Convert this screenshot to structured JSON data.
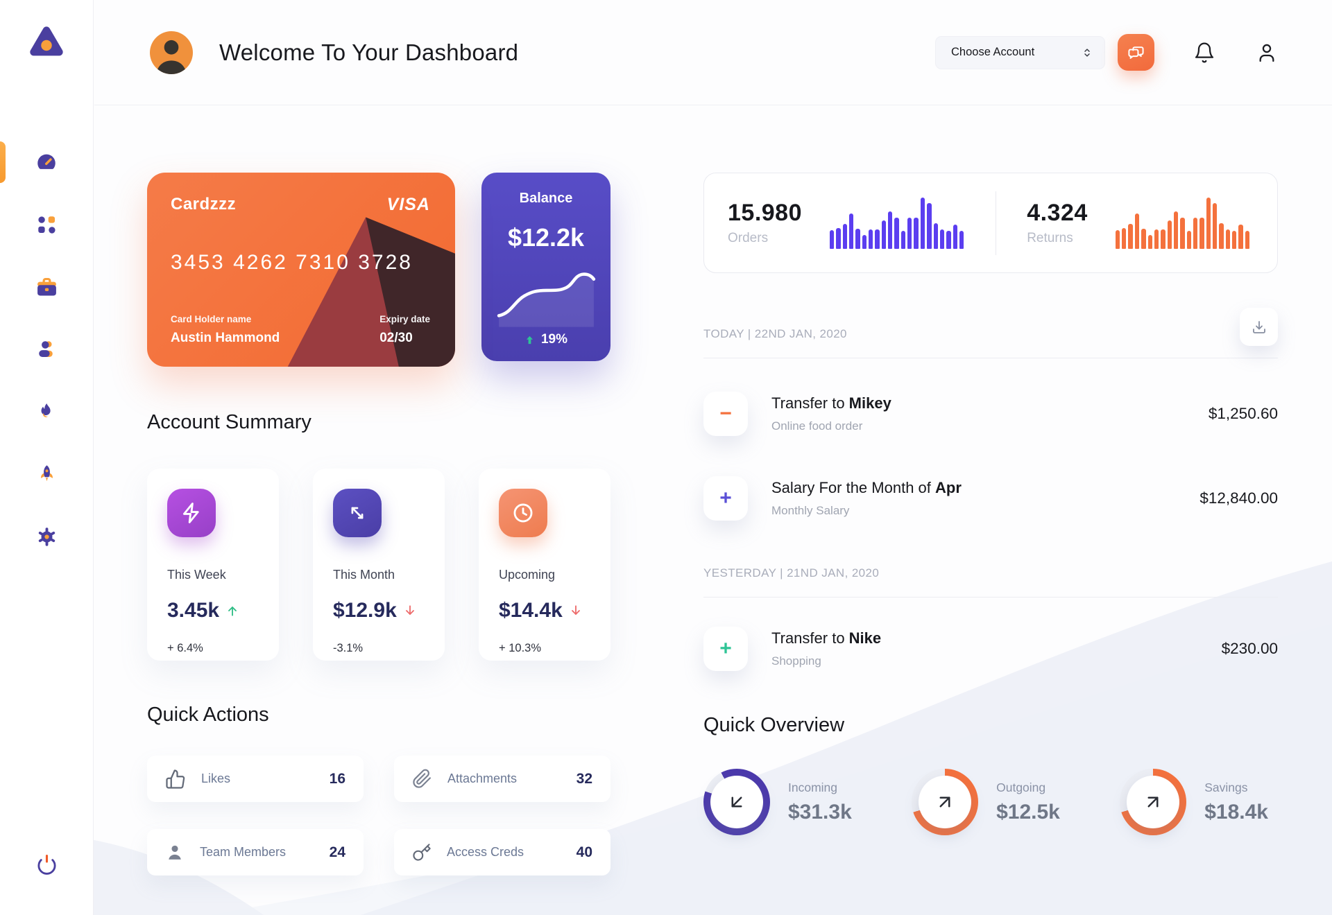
{
  "header": {
    "title": "Welcome To Your Dashboard",
    "account_select": "Choose Account",
    "icons": [
      "chat-bubbles-icon",
      "bell-icon",
      "user-icon"
    ]
  },
  "sidebar": {
    "logo": "triangle-logo",
    "items": [
      {
        "name": "dashboard",
        "icon": "speedometer-icon",
        "active": true
      },
      {
        "name": "apps",
        "icon": "grid-dots-icon",
        "active": false
      },
      {
        "name": "work",
        "icon": "briefcase-icon",
        "active": false
      },
      {
        "name": "team",
        "icon": "user-icon",
        "active": false
      },
      {
        "name": "trending",
        "icon": "flame-icon",
        "active": false
      },
      {
        "name": "launch",
        "icon": "rocket-icon",
        "active": false
      },
      {
        "name": "settings",
        "icon": "gear-icon",
        "active": false
      }
    ],
    "logout_icon": "power-icon"
  },
  "card": {
    "name": "Cardzzz",
    "brand": "VISA",
    "number": "3453 4262 7310 3728",
    "holder_label": "Card Holder name",
    "holder": "Austin Hammond",
    "expiry_label": "Expiry date",
    "expiry": "02/30"
  },
  "balance": {
    "label": "Balance",
    "value": "$12.2k",
    "change": "19%",
    "trend": "up"
  },
  "account_summary": {
    "title": "Account Summary",
    "cards": [
      {
        "label": "This Week",
        "value": "3.45k",
        "trend": "up",
        "change": "+ 6.4%",
        "icon": "lightning-icon"
      },
      {
        "label": "This Month",
        "value": "$12.9k",
        "trend": "down",
        "change": "-3.1%",
        "icon": "transfer-arrows-icon"
      },
      {
        "label": "Upcoming",
        "value": "$14.4k",
        "trend": "down",
        "change": "+ 10.3%",
        "icon": "clock-icon"
      }
    ]
  },
  "quick_actions": {
    "title": "Quick Actions",
    "items": [
      {
        "label": "Likes",
        "count": "16",
        "icon": "clap-hands-icon"
      },
      {
        "label": "Attachments",
        "count": "32",
        "icon": "paperclip-icon"
      },
      {
        "label": "Team Members",
        "count": "24",
        "icon": "member-icon"
      },
      {
        "label": "Access Creds",
        "count": "40",
        "icon": "key-icon"
      }
    ]
  },
  "stats": {
    "orders": {
      "value": "15.980",
      "label": "Orders"
    },
    "returns": {
      "value": "4.324",
      "label": "Returns"
    }
  },
  "chart_data": [
    {
      "type": "bar",
      "title": "Orders activity",
      "values": [
        36,
        40,
        48,
        68,
        38,
        26,
        37,
        37,
        55,
        72,
        60,
        35,
        60,
        60,
        100,
        88,
        50,
        37,
        35,
        47,
        34
      ],
      "color": "#5B3EF0",
      "xlabel": "",
      "ylabel": "",
      "grid": false,
      "legend": false
    },
    {
      "type": "bar",
      "title": "Returns activity",
      "values": [
        36,
        40,
        48,
        68,
        38,
        26,
        37,
        37,
        55,
        72,
        60,
        35,
        60,
        60,
        100,
        88,
        50,
        37,
        35,
        47,
        34
      ],
      "color": "#F4713D",
      "xlabel": "",
      "ylabel": "",
      "grid": false,
      "legend": false
    },
    {
      "type": "line",
      "title": "Balance trend",
      "values": [
        10,
        13,
        18,
        26,
        32,
        34,
        35,
        35,
        35,
        36,
        38,
        44,
        54,
        57,
        52
      ],
      "color": "#FFFFFF",
      "xlabel": "",
      "ylabel": "",
      "grid": false,
      "legend": false
    }
  ],
  "transactions": {
    "today_label": "TODAY | 22ND JAN, 2020",
    "yesterday_label": "YESTERDAY | 21ND JAN, 2020",
    "today": [
      {
        "title_prefix": "Transfer to ",
        "title_bold": "Mikey",
        "subtitle": "Online food order",
        "amount": "$1,250.60",
        "sign_symbol": "−",
        "sign_color": "#F4713D"
      },
      {
        "title_prefix": "Salary For the Month of ",
        "title_bold": "Apr",
        "subtitle": "Monthly Salary",
        "amount": "$12,840.00",
        "sign_symbol": "+",
        "sign_color": "#5A4FD6"
      }
    ],
    "yesterday": [
      {
        "title_prefix": "Transfer to ",
        "title_bold": "Nike",
        "subtitle": "Shopping",
        "amount": "$230.00",
        "sign_symbol": "+",
        "sign_color": "#2EC495"
      }
    ]
  },
  "quick_overview": {
    "title": "Quick Overview",
    "items": [
      {
        "label": "Incoming",
        "value": "$31.3k",
        "ring_color": "#4B39AC",
        "percent": 88,
        "arrow": "arrow-down-left-icon"
      },
      {
        "label": "Outgoing",
        "value": "$12.5k",
        "ring_color": "#F4713D",
        "percent": 70,
        "arrow": "arrow-up-right-icon"
      },
      {
        "label": "Savings",
        "value": "$18.4k",
        "ring_color": "#F4713D",
        "percent": 70,
        "arrow": "arrow-up-right-icon"
      }
    ]
  },
  "colors": {
    "primary_orange": "#F4713D",
    "primary_purple": "#5348BE",
    "sidebar_icon_purple": "#4A3F9F",
    "sidebar_icon_amber": "#F9A03B",
    "success_green": "#2EC495",
    "danger_red": "#ED6A6A",
    "text_dark": "#17181D",
    "text_navy": "#262A5C",
    "text_muted": "#A0A5B1"
  }
}
